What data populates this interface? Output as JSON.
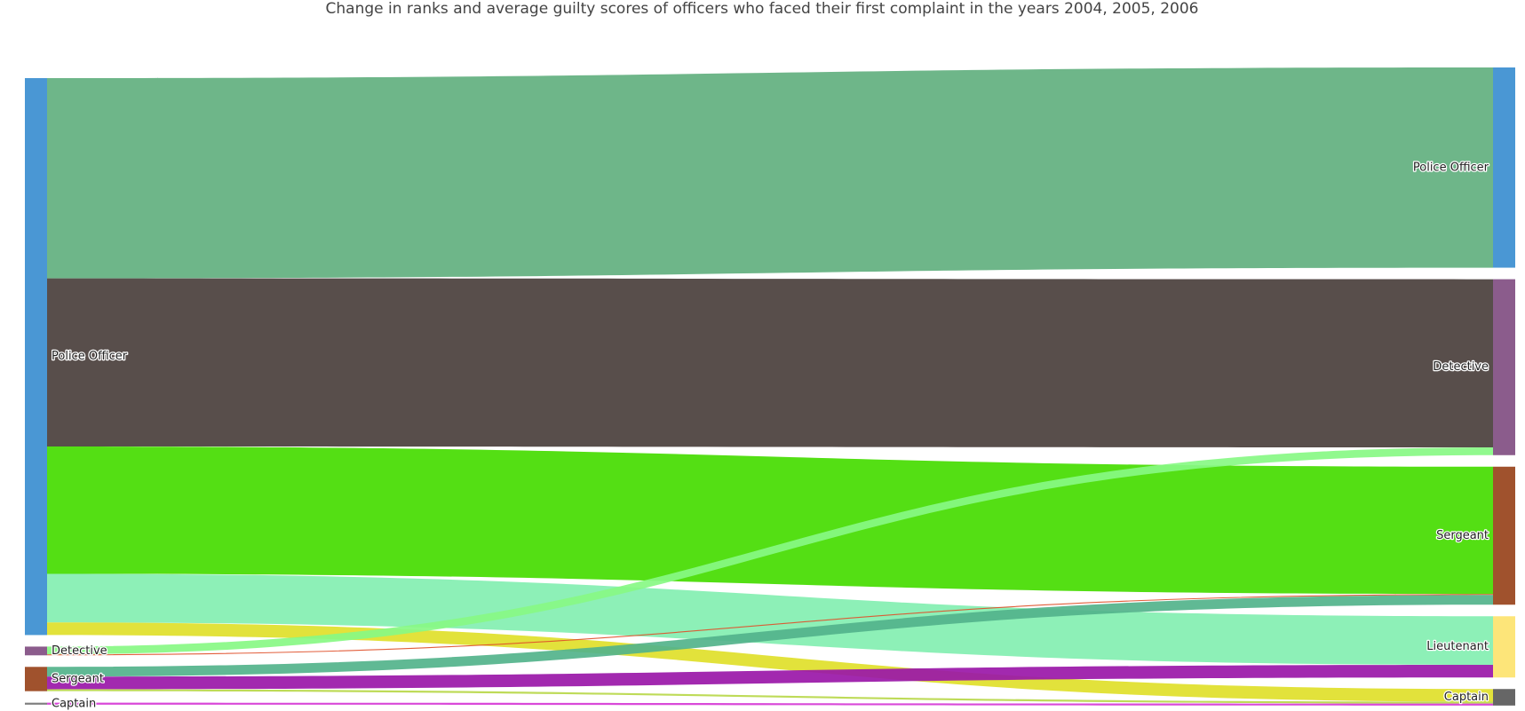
{
  "chart_data": {
    "type": "sankey",
    "title": "Change in ranks and average guilty scores of officers who faced their first complaint in the years 2004, 2005, 2006",
    "nodes": [
      {
        "label": "Police Officer",
        "color": "#4a97d4"
      },
      {
        "label": "Detective",
        "color": "#8b5c8c"
      },
      {
        "label": "Sergeant",
        "color": "#a0522d"
      },
      {
        "label": "Captain",
        "color": "#7f7f7f"
      },
      {
        "label": "Police Officer",
        "color": "#4a97d4"
      },
      {
        "label": "Detective",
        "color": "#8b5c8c"
      },
      {
        "label": "Sergeant",
        "color": "#a0522d"
      },
      {
        "label": "Lieutenant",
        "color": "#fde579"
      },
      {
        "label": "Captain",
        "color": "#666666"
      }
    ],
    "links": {
      "source": [
        0,
        0,
        0,
        0,
        0,
        1,
        1,
        2,
        2,
        2,
        3
      ],
      "target": [
        4,
        5,
        6,
        7,
        8,
        5,
        6,
        6,
        7,
        8,
        8
      ],
      "values": [
        206,
        173,
        131,
        50,
        13,
        8,
        1,
        10,
        13,
        2,
        2
      ],
      "colors": [
        "#62b07f",
        "#4a3f3c",
        "#45dc00",
        "#83efb1",
        "#e0e02a",
        "#88f884",
        "#e0502a",
        "#52b38b",
        "#9a17a8",
        "#b8d84a",
        "#d63ad6"
      ]
    }
  }
}
